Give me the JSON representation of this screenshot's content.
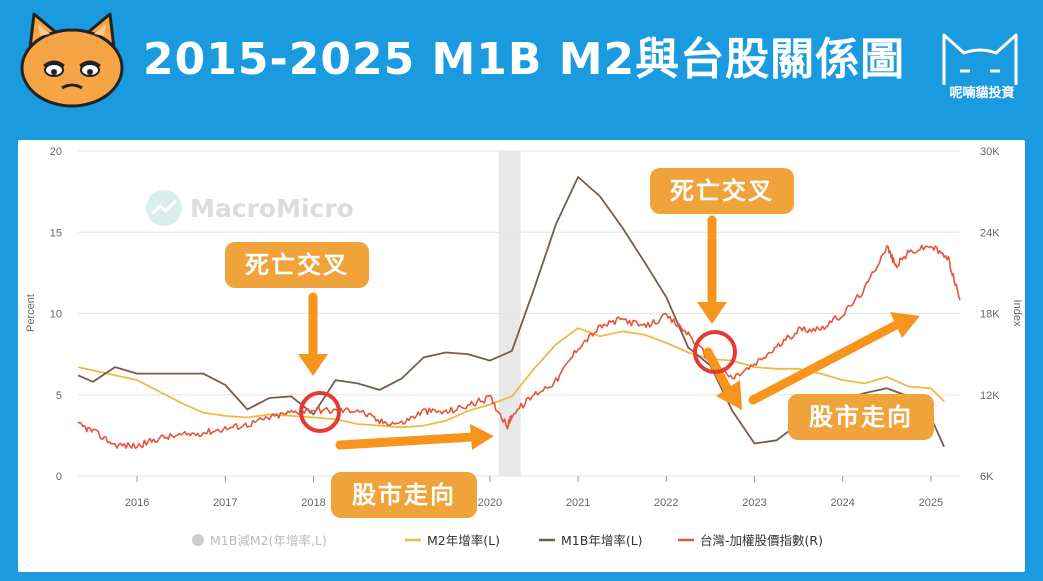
{
  "header": {
    "title": "2015-2025 M1B  M2與台股關係圖",
    "brand_name": "呢喃貓投資"
  },
  "watermark": "MacroMicro",
  "annotations": {
    "death_cross_1": "死亡交叉",
    "death_cross_2": "死亡交叉",
    "market_trend_1": "股市走向",
    "market_trend_2": "股市走向"
  },
  "colors": {
    "header_bg": "#1a9be0",
    "m2": "#f2b844",
    "m1b": "#7a5a4a",
    "taiex": "#e4553e",
    "callout": "#f0a33a",
    "arrow": "#f7941d",
    "circle": "#e53935",
    "recession_band": "#e8e8e8",
    "spread_legend": "#cccccc"
  },
  "chart_data": {
    "type": "line",
    "x_range": [
      "2015.33",
      "2025.33"
    ],
    "x_ticks": [
      "2016",
      "2017",
      "2018",
      "2019",
      "2020",
      "2021",
      "2022",
      "2023",
      "2024",
      "2025"
    ],
    "y_left": {
      "label": "Percent",
      "range": [
        0,
        20
      ],
      "ticks": [
        "0",
        "5",
        "10",
        "15",
        "20"
      ]
    },
    "y_right": {
      "label": "Index",
      "range": [
        6000,
        30000
      ],
      "ticks": [
        "6K",
        "12K",
        "18K",
        "24K",
        "30K"
      ]
    },
    "shaded_period": [
      "2020.1",
      "2020.35"
    ],
    "legend": [
      {
        "name": "M1B減M2(年增率,L)",
        "color": "#cccccc",
        "marker": "dot"
      },
      {
        "name": "M2年增率(L)",
        "color": "#f2b844",
        "marker": "line"
      },
      {
        "name": "M1B年增率(L)",
        "color": "#7a5a4a",
        "marker": "line"
      },
      {
        "name": "台灣-加權股價指數(R)",
        "color": "#e4553e",
        "marker": "line"
      }
    ],
    "series": [
      {
        "name": "M2年增率(L)",
        "axis": "left",
        "x": [
          2015.33,
          2015.5,
          2015.75,
          2016.0,
          2016.25,
          2016.5,
          2016.75,
          2017.0,
          2017.25,
          2017.5,
          2017.75,
          2018.0,
          2018.25,
          2018.5,
          2018.75,
          2019.0,
          2019.25,
          2019.5,
          2019.75,
          2020.0,
          2020.25,
          2020.5,
          2020.75,
          2021.0,
          2021.25,
          2021.5,
          2021.75,
          2022.0,
          2022.25,
          2022.5,
          2022.75,
          2023.0,
          2023.25,
          2023.5,
          2023.75,
          2024.0,
          2024.25,
          2024.5,
          2024.75,
          2025.0,
          2025.15
        ],
        "y": [
          6.7,
          6.5,
          6.2,
          5.9,
          5.2,
          4.5,
          3.9,
          3.7,
          3.6,
          3.8,
          3.7,
          3.6,
          3.5,
          3.2,
          3.1,
          3.0,
          3.1,
          3.4,
          4.0,
          4.4,
          4.9,
          6.6,
          8.1,
          9.1,
          8.6,
          8.9,
          8.7,
          8.2,
          7.6,
          7.2,
          7.1,
          6.7,
          6.6,
          6.6,
          6.3,
          5.9,
          5.7,
          6.1,
          5.5,
          5.4,
          4.6
        ]
      },
      {
        "name": "M1B年增率(L)",
        "axis": "left",
        "x": [
          2015.33,
          2015.5,
          2015.75,
          2016.0,
          2016.25,
          2016.5,
          2016.75,
          2017.0,
          2017.25,
          2017.5,
          2017.75,
          2018.0,
          2018.25,
          2018.5,
          2018.75,
          2019.0,
          2019.25,
          2019.5,
          2019.75,
          2020.0,
          2020.25,
          2020.5,
          2020.75,
          2021.0,
          2021.25,
          2021.5,
          2021.75,
          2022.0,
          2022.25,
          2022.5,
          2022.75,
          2023.0,
          2023.25,
          2023.5,
          2023.75,
          2024.0,
          2024.25,
          2024.5,
          2024.75,
          2025.0,
          2025.15
        ],
        "y": [
          6.2,
          5.8,
          6.7,
          6.3,
          6.3,
          6.3,
          6.3,
          5.6,
          4.1,
          4.8,
          4.9,
          3.8,
          5.9,
          5.7,
          5.3,
          6.0,
          7.3,
          7.6,
          7.5,
          7.1,
          7.7,
          11.5,
          15.5,
          18.4,
          17.2,
          15.3,
          13.2,
          11.0,
          7.9,
          6.8,
          4.0,
          2.0,
          2.2,
          3.2,
          4.6,
          4.7,
          5.1,
          5.4,
          4.9,
          3.6,
          1.8
        ]
      },
      {
        "name": "台灣-加權股價指數(R)",
        "axis": "right",
        "x": [
          2015.33,
          2015.5,
          2015.75,
          2016.0,
          2016.25,
          2016.5,
          2016.75,
          2017.0,
          2017.25,
          2017.5,
          2017.75,
          2018.0,
          2018.25,
          2018.5,
          2018.75,
          2019.0,
          2019.25,
          2019.5,
          2019.75,
          2020.0,
          2020.2,
          2020.25,
          2020.5,
          2020.75,
          2021.0,
          2021.25,
          2021.5,
          2021.75,
          2022.0,
          2022.25,
          2022.5,
          2022.75,
          2023.0,
          2023.25,
          2023.5,
          2023.75,
          2024.0,
          2024.25,
          2024.5,
          2024.6,
          2024.75,
          2025.0,
          2025.2,
          2025.33
        ],
        "y": [
          9800,
          9300,
          8300,
          8200,
          8800,
          9000,
          9200,
          9500,
          9800,
          10300,
          10700,
          10900,
          10800,
          10900,
          10000,
          9900,
          10800,
          10700,
          11200,
          11800,
          9700,
          10500,
          12000,
          13000,
          15500,
          17000,
          17600,
          17000,
          17800,
          16500,
          14500,
          13200,
          14200,
          15500,
          16800,
          16900,
          17900,
          19800,
          23000,
          21500,
          22500,
          23000,
          22000,
          19000
        ]
      }
    ]
  }
}
